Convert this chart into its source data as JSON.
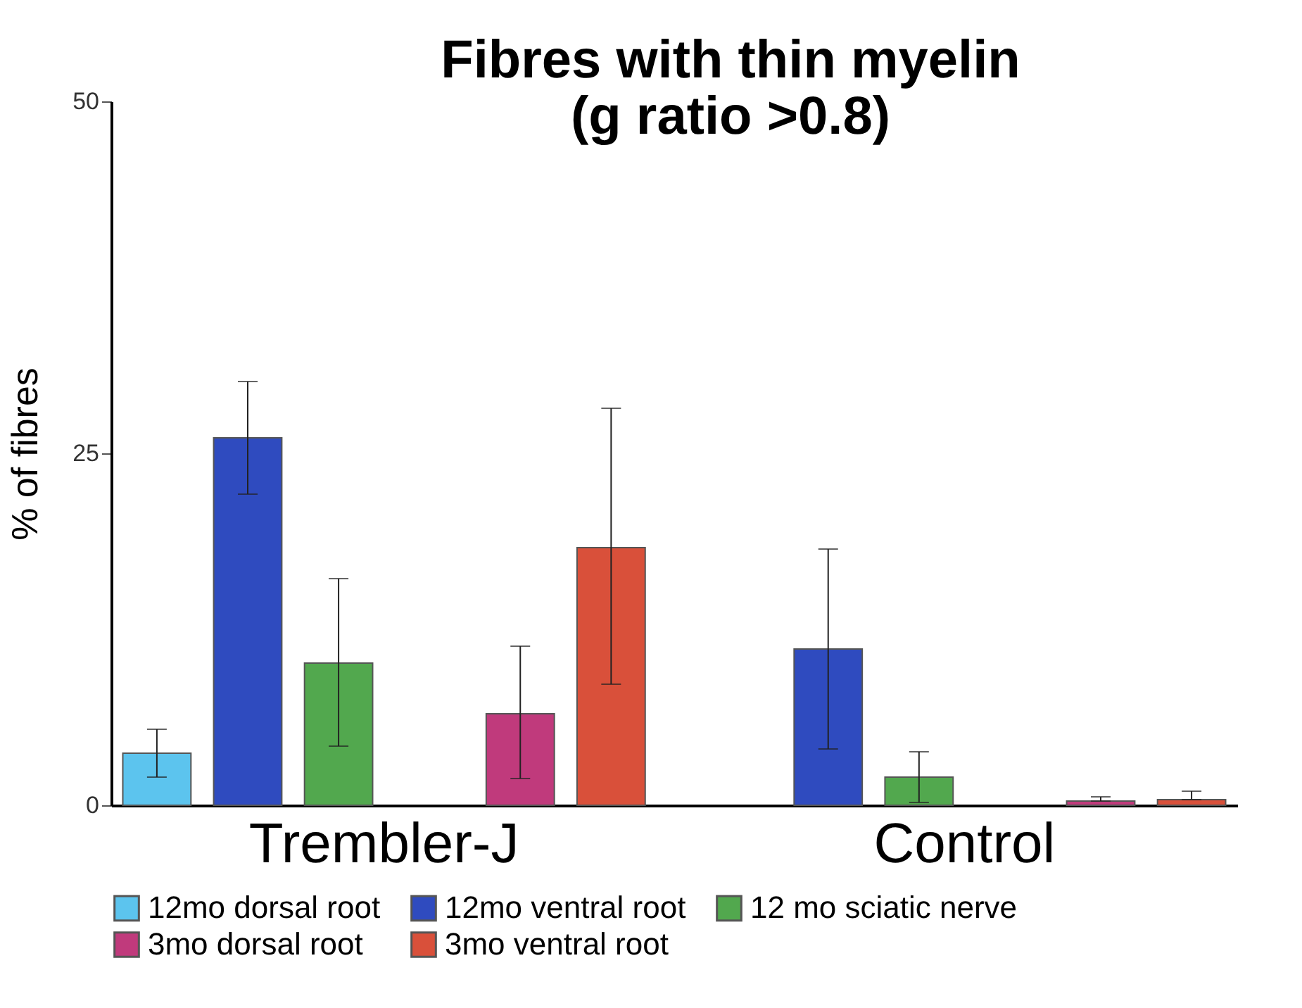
{
  "chart_data": {
    "type": "bar",
    "title": [
      "Fibres with thin myelin",
      "(g ratio >0.8)"
    ],
    "ylabel": "% of fibres",
    "categories": [
      "Trembler-J",
      "Control"
    ],
    "series": [
      {
        "name": "12mo dorsal root",
        "color": "#5cc4ee",
        "values": [
          3.7,
          null
        ],
        "errors": [
          [
            2.0,
            5.4
          ],
          null
        ]
      },
      {
        "name": "12mo ventral root",
        "color": "#2f4bbf",
        "values": [
          26.1,
          11.1
        ],
        "errors": [
          [
            22.1,
            30.1
          ],
          [
            4.0,
            18.2
          ]
        ]
      },
      {
        "name": "12 mo sciatic nerve",
        "color": "#52a84e",
        "values": [
          10.1,
          2.0
        ],
        "errors": [
          [
            4.2,
            16.1
          ],
          [
            0.2,
            3.8
          ]
        ]
      },
      {
        "name": "3mo dorsal root",
        "color": "#c03a7c",
        "values": [
          6.5,
          0.3
        ],
        "errors": [
          [
            1.9,
            11.3
          ],
          [
            0.3,
            0.6
          ]
        ]
      },
      {
        "name": "3mo ventral root",
        "color": "#d9503a",
        "values": [
          18.3,
          0.4
        ],
        "errors": [
          [
            8.6,
            28.2
          ],
          [
            0.4,
            1.0
          ]
        ]
      }
    ],
    "ylim": [
      0,
      50
    ],
    "yticks": [
      0,
      25,
      50
    ],
    "grid": false,
    "legend": "bottom"
  }
}
